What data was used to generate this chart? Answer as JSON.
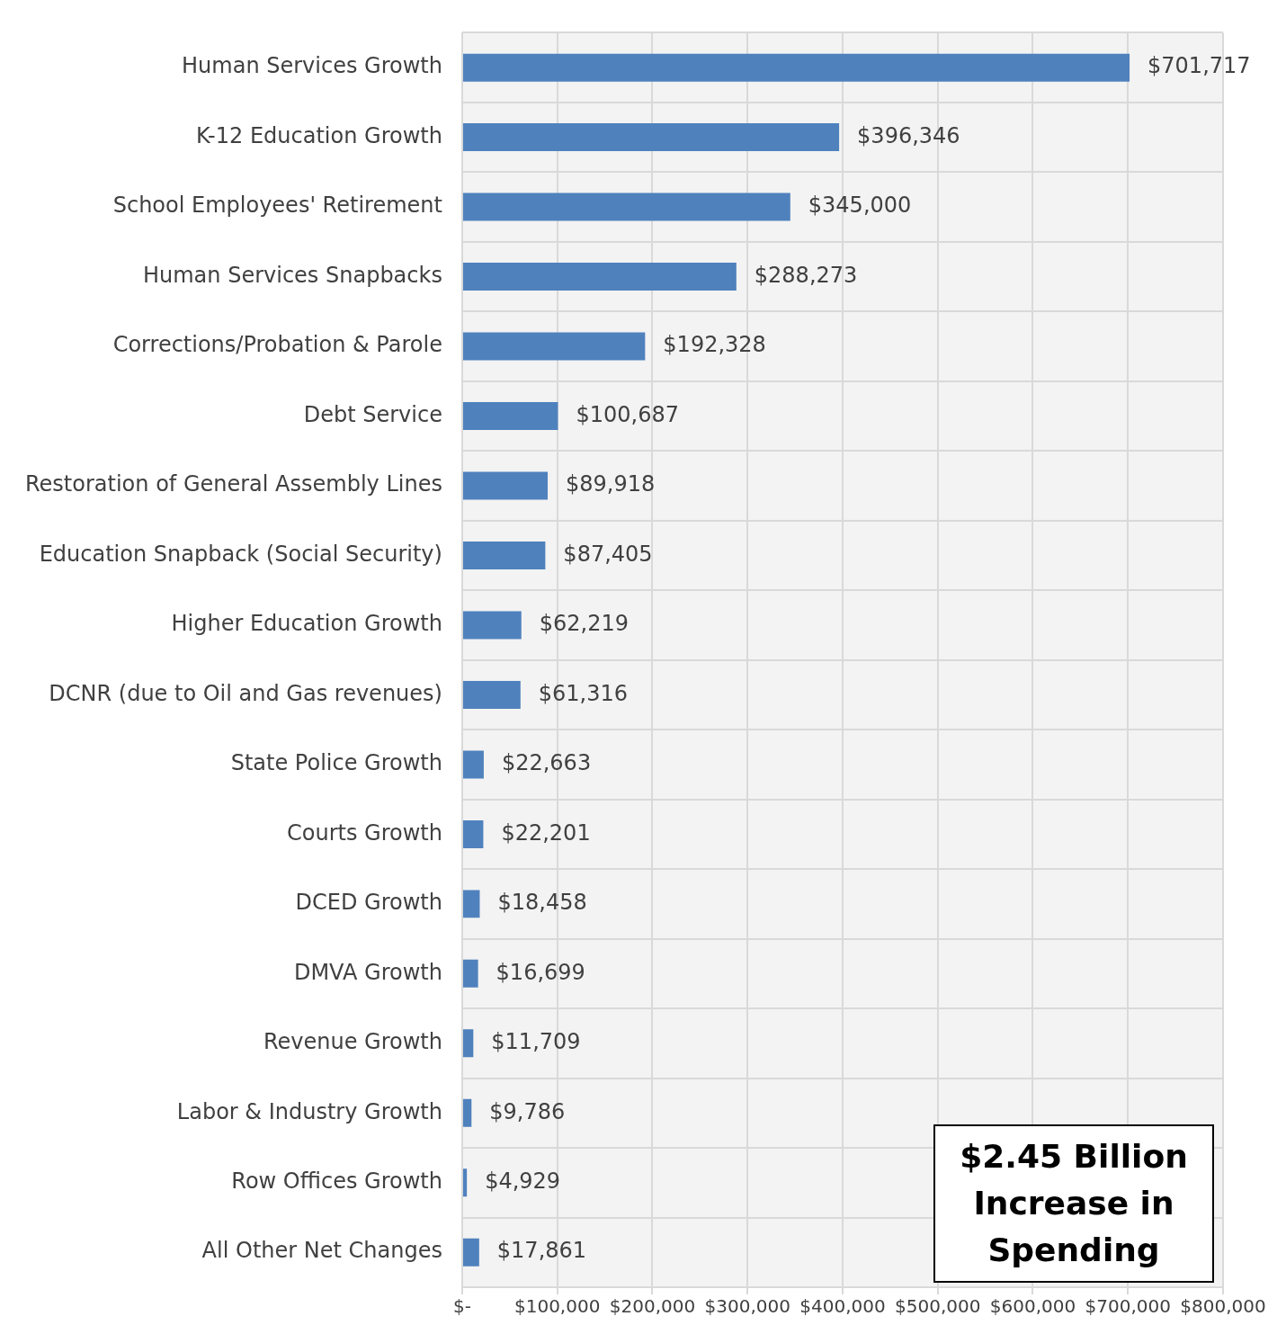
{
  "chart_data": {
    "type": "bar",
    "orientation": "horizontal",
    "categories": [
      "Human Services Growth",
      "K-12 Education Growth",
      "School Employees' Retirement",
      "Human Services Snapbacks",
      "Corrections/Probation & Parole",
      "Debt Service",
      "Restoration of General Assembly Lines",
      "Education Snapback (Social Security)",
      "Higher Education Growth",
      "DCNR (due to Oil and Gas revenues)",
      "State Police Growth",
      "Courts Growth",
      "DCED Growth",
      "DMVA Growth",
      "Revenue Growth",
      "Labor & Industry Growth",
      "Row Offices Growth",
      "All Other Net Changes"
    ],
    "values": [
      701717,
      396346,
      345000,
      288273,
      192328,
      100687,
      89918,
      87405,
      62219,
      61316,
      22663,
      22201,
      18458,
      16699,
      11709,
      9786,
      4929,
      17861
    ],
    "value_labels": [
      "$701,717",
      "$396,346",
      "$345,000",
      "$288,273",
      "$192,328",
      "$100,687",
      "$89,918",
      "$87,405",
      "$62,219",
      "$61,316",
      "$22,663",
      "$22,201",
      "$18,458",
      "$16,699",
      "$11,709",
      "$9,786",
      "$4,929",
      "$17,861"
    ],
    "color": "#4f81bd",
    "xlim": [
      0,
      800000
    ],
    "xticks": [
      {
        "value": 0,
        "label": "$-"
      },
      {
        "value": 100000,
        "label": "$100,000"
      },
      {
        "value": 200000,
        "label": "$200,000"
      },
      {
        "value": 300000,
        "label": "$300,000"
      },
      {
        "value": 400000,
        "label": "$400,000"
      },
      {
        "value": 500000,
        "label": "$500,000"
      },
      {
        "value": 600000,
        "label": "$600,000"
      },
      {
        "value": 700000,
        "label": "$700,000"
      },
      {
        "value": 800000,
        "label": "$800,000"
      }
    ],
    "grid": true,
    "annotations": [
      "$2.45 Billion Increase in Spending"
    ]
  }
}
